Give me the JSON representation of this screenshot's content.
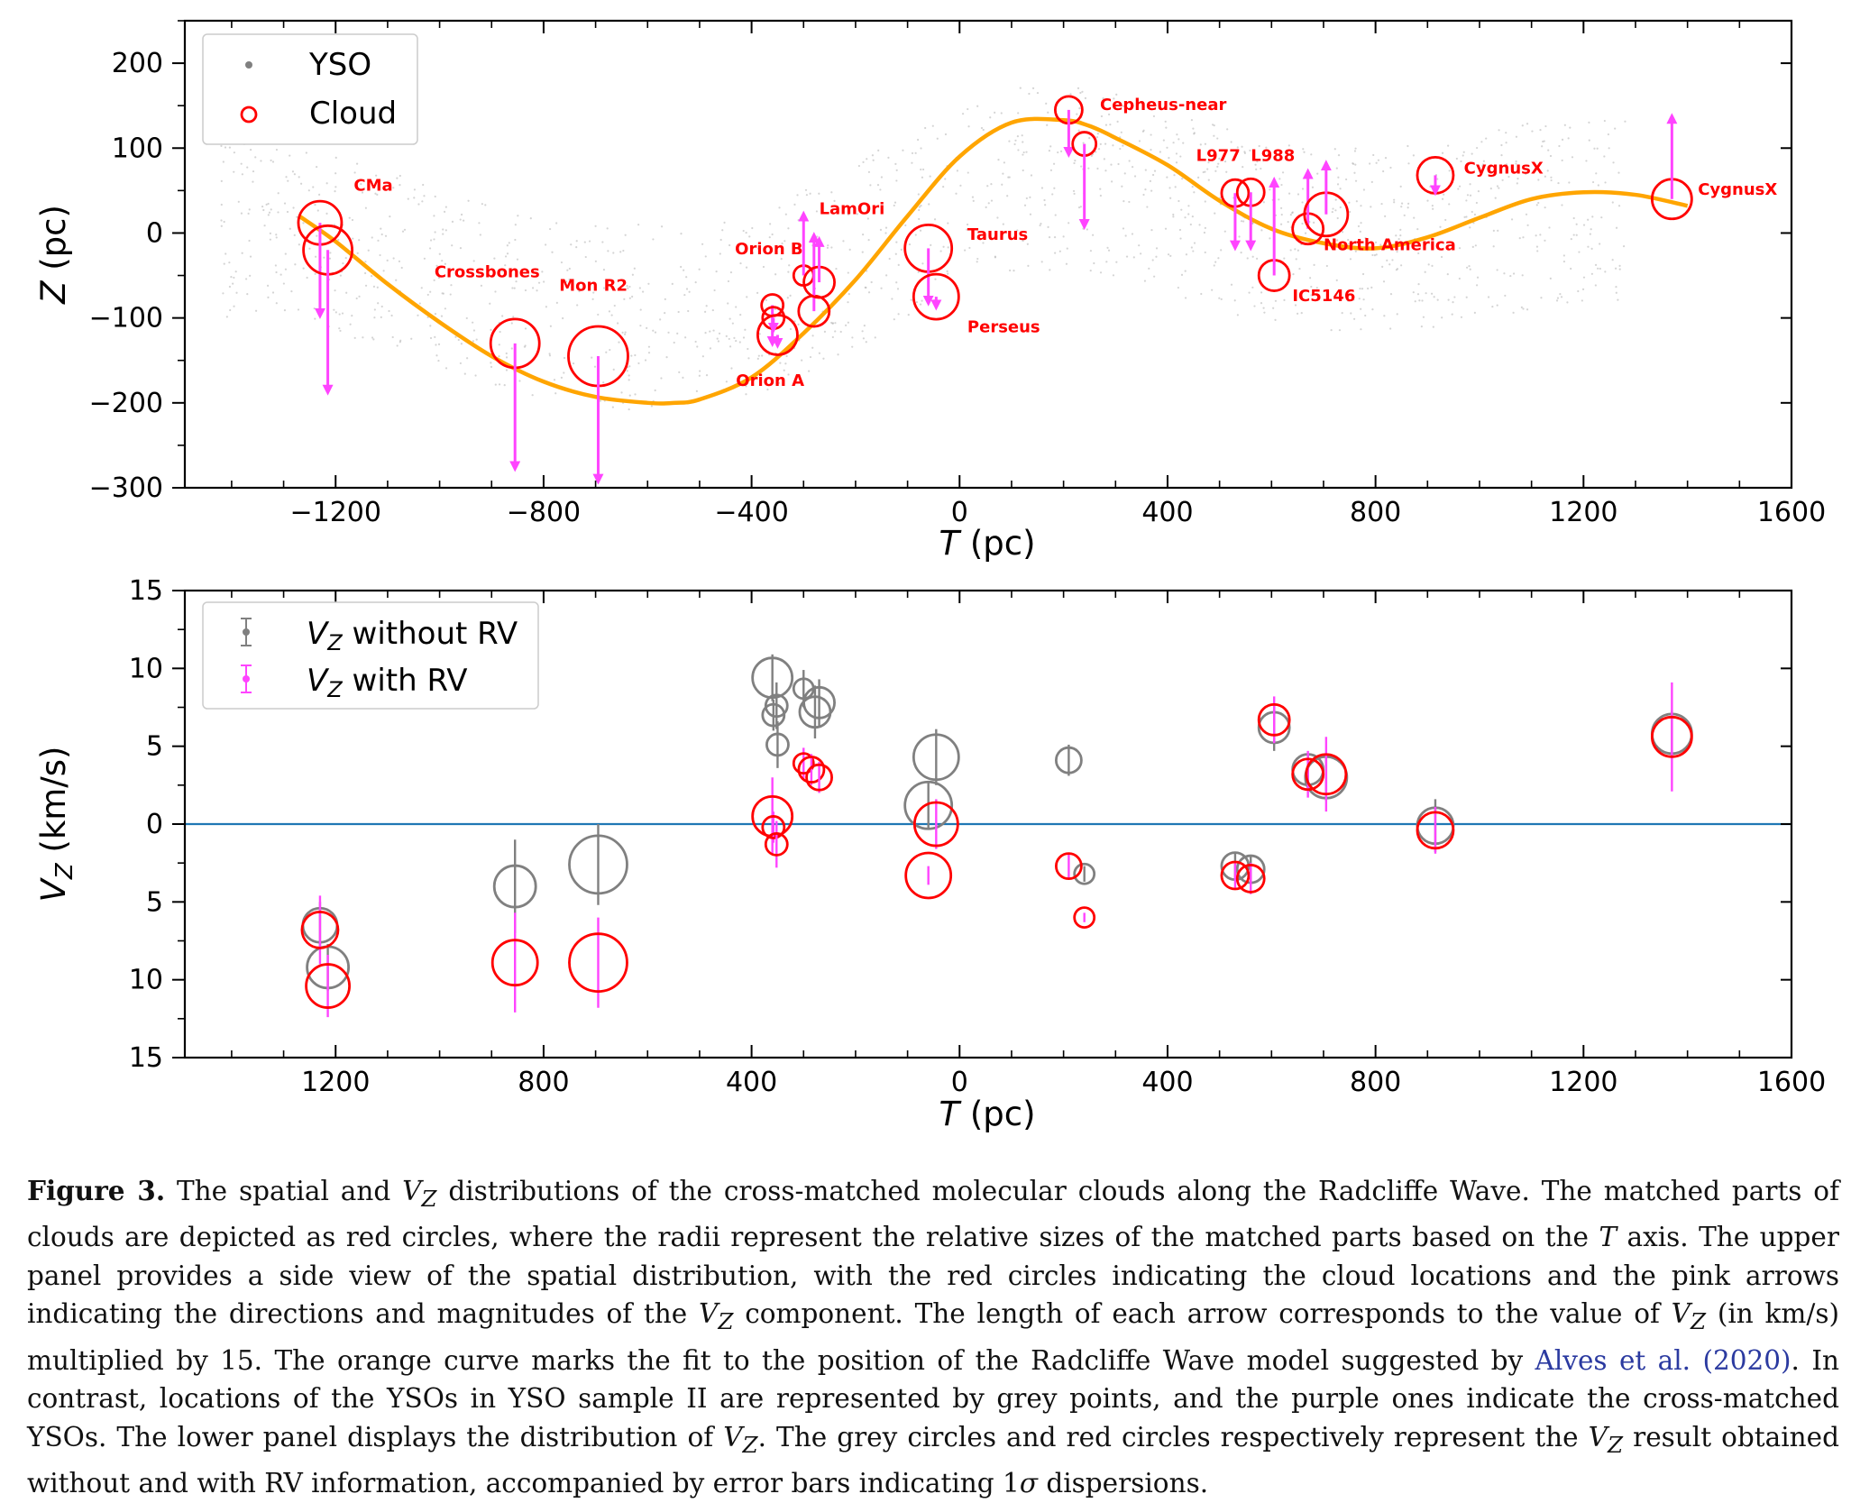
{
  "chart_data": [
    {
      "type": "scatter",
      "panel": "top",
      "xlabel": "T (pc)",
      "ylabel": "Z (pc)",
      "xlim": [
        -1490,
        1600
      ],
      "ylim": [
        -300,
        250
      ],
      "xticks": [
        -1200,
        -800,
        -400,
        0,
        400,
        800,
        1200,
        1600
      ],
      "xtick_labels": [
        "−1200",
        "−800",
        "−400",
        "0",
        "400",
        "800",
        "1200",
        "1600"
      ],
      "yticks": [
        200,
        100,
        0,
        -100,
        -200,
        -300
      ],
      "ytick_labels": [
        "200",
        "100",
        "0",
        "−100",
        "−200",
        "−300"
      ],
      "legend": {
        "placement": "top-left",
        "entries": [
          "YSO",
          "Cloud"
        ]
      },
      "colors": {
        "cloud": "#ff0000",
        "arrow": "#ff44ff",
        "wave": "#ffa500",
        "yso": "#b0b0b0",
        "label": "#ff0000"
      },
      "wave_curve": {
        "T": [
          -1270,
          -1200,
          -1100,
          -1000,
          -900,
          -800,
          -700,
          -600,
          -550,
          -500,
          -400,
          -300,
          -200,
          -100,
          0,
          100,
          200,
          250,
          300,
          400,
          500,
          600,
          700,
          800,
          900,
          1000,
          1100,
          1200,
          1300,
          1400
        ],
        "Z": [
          20,
          -10,
          -60,
          -105,
          -145,
          -175,
          -193,
          -200,
          -200,
          -196,
          -170,
          -118,
          -55,
          20,
          90,
          130,
          133,
          126,
          112,
          80,
          38,
          5,
          -12,
          -18,
          -5,
          18,
          40,
          48,
          45,
          32
        ]
      },
      "clouds": [
        {
          "T": -1230,
          "Z": 12,
          "r": 24,
          "vz_arrow_end": -95
        },
        {
          "T": -1215,
          "Z": -20,
          "r": 27,
          "vz_arrow_end": -185
        },
        {
          "T": -855,
          "Z": -130,
          "r": 27,
          "vz_arrow_end": -275
        },
        {
          "T": -695,
          "Z": -145,
          "r": 33,
          "vz_arrow_end": -290
        },
        {
          "T": -360,
          "Z": -85,
          "r": 12,
          "vz_arrow_end": -128
        },
        {
          "T": -358,
          "Z": -100,
          "r": 12,
          "vz_arrow_end": -112
        },
        {
          "T": -350,
          "Z": -120,
          "r": 22,
          "vz_arrow_end": -130
        },
        {
          "T": -300,
          "Z": -50,
          "r": 11,
          "vz_arrow_end": 20
        },
        {
          "T": -280,
          "Z": -92,
          "r": 17,
          "vz_arrow_end": -5
        },
        {
          "T": -270,
          "Z": -58,
          "r": 17,
          "vz_arrow_end": -10
        },
        {
          "T": -60,
          "Z": -18,
          "r": 26,
          "vz_arrow_end": -80
        },
        {
          "T": -45,
          "Z": -75,
          "r": 25,
          "vz_arrow_end": -85
        },
        {
          "T": 210,
          "Z": 145,
          "r": 15,
          "vz_arrow_end": 95
        },
        {
          "T": 240,
          "Z": 105,
          "r": 13,
          "vz_arrow_end": 10
        },
        {
          "T": 530,
          "Z": 47,
          "r": 15,
          "vz_arrow_end": -15
        },
        {
          "T": 560,
          "Z": 48,
          "r": 15,
          "vz_arrow_end": -15
        },
        {
          "T": 605,
          "Z": -50,
          "r": 17,
          "vz_arrow_end": 60
        },
        {
          "T": 670,
          "Z": 5,
          "r": 17,
          "vz_arrow_end": 70
        },
        {
          "T": 705,
          "Z": 22,
          "r": 24,
          "vz_arrow_end": 80
        },
        {
          "T": 915,
          "Z": 68,
          "r": 20,
          "vz_arrow_end": 50
        },
        {
          "T": 1370,
          "Z": 40,
          "r": 22,
          "vz_arrow_end": 135
        }
      ],
      "labels": [
        {
          "text": "CMa",
          "T": -1165,
          "Z": 50
        },
        {
          "text": "Crossbones",
          "T": -1010,
          "Z": -52
        },
        {
          "text": "Mon R2",
          "T": -770,
          "Z": -68
        },
        {
          "text": "Orion B",
          "T": -432,
          "Z": -25
        },
        {
          "text": "LamOri",
          "T": -270,
          "Z": 22
        },
        {
          "text": "Orion A",
          "T": -430,
          "Z": -180
        },
        {
          "text": "Taurus",
          "T": 15,
          "Z": -8
        },
        {
          "text": "Perseus",
          "T": 15,
          "Z": -117
        },
        {
          "text": "Cepheus-near",
          "T": 270,
          "Z": 145
        },
        {
          "text": "L977",
          "T": 455,
          "Z": 85
        },
        {
          "text": "L988",
          "T": 560,
          "Z": 85
        },
        {
          "text": "IC5146",
          "T": 640,
          "Z": -80
        },
        {
          "text": "North America",
          "T": 700,
          "Z": -20
        },
        {
          "text": "CygnusX",
          "T": 970,
          "Z": 70
        },
        {
          "text": "CygnusX",
          "T": 1420,
          "Z": 45
        }
      ]
    },
    {
      "type": "scatter",
      "panel": "bottom",
      "xlabel": "T (pc)",
      "ylabel": "V_Z (km/s)",
      "xlim": [
        -1490,
        1600
      ],
      "ylim": [
        -15,
        15
      ],
      "xticks": [
        -1200,
        -800,
        -400,
        0,
        400,
        800,
        1200,
        1600
      ],
      "xtick_labels": [
        "1200",
        "800",
        "400",
        "0",
        "400",
        "800",
        "1200",
        "1600"
      ],
      "yticks": [
        15,
        10,
        5,
        0,
        -5,
        -10,
        -15
      ],
      "ytick_labels": [
        "15",
        "10",
        "5",
        "0",
        "5",
        "10",
        "15"
      ],
      "zero_line_color": "#1f77b4",
      "legend": {
        "placement": "top-left",
        "entries": [
          "V_Z without RV",
          "V_Z with RV"
        ]
      },
      "colors": {
        "without_rv": "#808080",
        "with_rv": "#ff0000",
        "with_rv_err": "#ff44ff"
      },
      "series": [
        {
          "name": "V_Z without RV",
          "points": [
            {
              "T": -1230,
              "Vz": -6.5,
              "err": 1.5,
              "r": 19
            },
            {
              "T": -1215,
              "Vz": -9.2,
              "err": 1.5,
              "r": 23
            },
            {
              "T": -855,
              "Vz": -4.0,
              "err": 3.0,
              "r": 23
            },
            {
              "T": -695,
              "Vz": -2.6,
              "err": 2.6,
              "r": 32
            },
            {
              "T": -360,
              "Vz": 9.4,
              "err": 1.5,
              "r": 22
            },
            {
              "T": -352,
              "Vz": 7.6,
              "err": 1.5,
              "r": 12
            },
            {
              "T": -358,
              "Vz": 7.0,
              "err": 1.0,
              "r": 12
            },
            {
              "T": -350,
              "Vz": 5.1,
              "err": 1.5,
              "r": 12
            },
            {
              "T": -300,
              "Vz": 8.7,
              "err": 1.2,
              "r": 11
            },
            {
              "T": -278,
              "Vz": 7.2,
              "err": 1.7,
              "r": 17
            },
            {
              "T": -270,
              "Vz": 7.8,
              "err": 1.5,
              "r": 17
            },
            {
              "T": -60,
              "Vz": 1.2,
              "err": 1.5,
              "r": 26
            },
            {
              "T": -45,
              "Vz": 4.3,
              "err": 1.8,
              "r": 25
            },
            {
              "T": 210,
              "Vz": 4.1,
              "err": 1.0,
              "r": 14
            },
            {
              "T": 240,
              "Vz": -3.2,
              "err": 0.5,
              "r": 11
            },
            {
              "T": 530,
              "Vz": -2.7,
              "err": 0.8,
              "r": 15
            },
            {
              "T": 560,
              "Vz": -2.9,
              "err": 0.8,
              "r": 15
            },
            {
              "T": 605,
              "Vz": 6.2,
              "err": 1.5,
              "r": 17
            },
            {
              "T": 670,
              "Vz": 3.5,
              "err": 1.0,
              "r": 17
            },
            {
              "T": 705,
              "Vz": 3.0,
              "err": 1.5,
              "r": 23
            },
            {
              "T": 915,
              "Vz": -0.1,
              "err": 1.7,
              "r": 20
            },
            {
              "T": 1370,
              "Vz": 5.8,
              "err": 1.5,
              "r": 22
            }
          ]
        },
        {
          "name": "V_Z with RV",
          "points": [
            {
              "T": -1230,
              "Vz": -6.8,
              "err": 2.2,
              "r": 20
            },
            {
              "T": -1215,
              "Vz": -10.4,
              "err": 2.0,
              "r": 24
            },
            {
              "T": -855,
              "Vz": -8.9,
              "err": 3.2,
              "r": 25
            },
            {
              "T": -695,
              "Vz": -8.9,
              "err": 2.9,
              "r": 32
            },
            {
              "T": -360,
              "Vz": 0.5,
              "err": 2.5,
              "r": 22
            },
            {
              "T": -358,
              "Vz": -0.2,
              "err": 1.0,
              "r": 12
            },
            {
              "T": -352,
              "Vz": -1.3,
              "err": 1.5,
              "r": 12
            },
            {
              "T": -300,
              "Vz": 3.9,
              "err": 1.0,
              "r": 11
            },
            {
              "T": -285,
              "Vz": 3.5,
              "err": 1.0,
              "r": 14
            },
            {
              "T": -270,
              "Vz": 3.0,
              "err": 1.0,
              "r": 14
            },
            {
              "T": -60,
              "Vz": -3.3,
              "err": 0.6,
              "r": 25
            },
            {
              "T": -45,
              "Vz": 0.0,
              "err": 1.6,
              "r": 24
            },
            {
              "T": 210,
              "Vz": -2.7,
              "err": 0.8,
              "r": 14
            },
            {
              "T": 240,
              "Vz": -6.0,
              "err": 0.3,
              "r": 11
            },
            {
              "T": 530,
              "Vz": -3.3,
              "err": 0.8,
              "r": 15
            },
            {
              "T": 560,
              "Vz": -3.5,
              "err": 1.0,
              "r": 15
            },
            {
              "T": 605,
              "Vz": 6.7,
              "err": 1.5,
              "r": 17
            },
            {
              "T": 670,
              "Vz": 3.2,
              "err": 1.5,
              "r": 17
            },
            {
              "T": 705,
              "Vz": 3.2,
              "err": 2.4,
              "r": 22
            },
            {
              "T": 915,
              "Vz": -0.4,
              "err": 1.5,
              "r": 20
            },
            {
              "T": 1370,
              "Vz": 5.6,
              "err": 3.5,
              "r": 22
            }
          ]
        }
      ]
    }
  ],
  "caption": {
    "label": "Figure 3.",
    "l1_a": "The spatial and ",
    "l1_var": "V",
    "l1_sub": "Z",
    "l1_b": " distributions of the cross-matched molecular clouds along the Radcliffe Wave. The matched parts of clouds are depicted as red circles, where the radii represent the relative sizes of the matched parts based on the ",
    "l1_T": "T",
    "l1_c": " axis. The upper panel provides a side view of the spatial distribution, with the red circles indicating the cloud locations and the pink arrows indicating the directions and magnitudes of the ",
    "l2_var": "V",
    "l2_sub": "Z",
    "l2_a": " component. The length of each arrow corresponds to the value of ",
    "l3_var": "V",
    "l3_sub": "Z",
    "l3_a": " (in km/s) multiplied by 15. The orange curve marks the fit to the position of the Radcliffe Wave model suggested by ",
    "link_text": "Alves et al. (2020)",
    "l3_b": ". In contrast, locations of the YSOs in YSO sample II are represented by grey points, and the purple ones indicate the cross-matched YSOs. The lower panel displays the distribution of ",
    "l4_var": "V",
    "l4_sub": "Z",
    "l4_a": ". The grey circles and red circles respectively represent the ",
    "l5_var": "V",
    "l5_sub": "Z",
    "l5_a": " result obtained without and with RV information, accompanied by error bars indicating 1",
    "sigma": "σ",
    "l5_b": " dispersions."
  }
}
